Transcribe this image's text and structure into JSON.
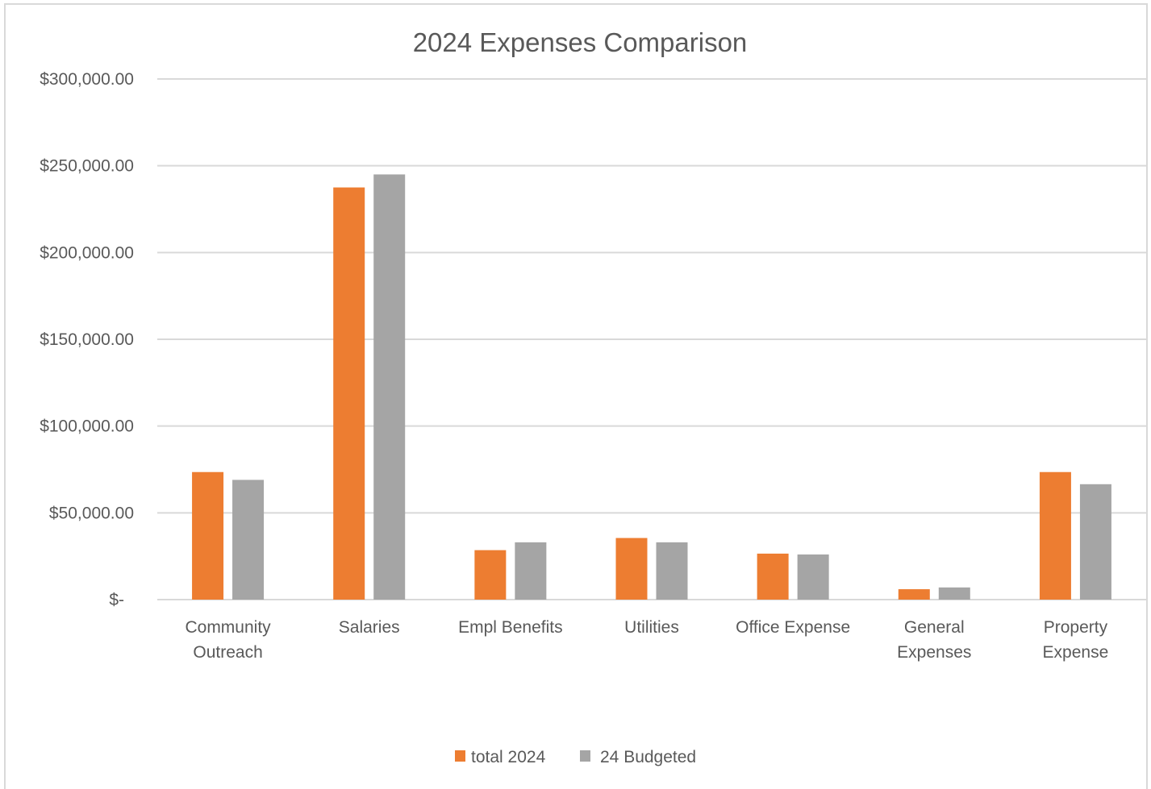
{
  "chart_data": {
    "type": "bar",
    "title": "2024 Expenses Comparison",
    "xlabel": "",
    "ylabel": "",
    "categories": [
      [
        "Community",
        "Outreach"
      ],
      [
        "Salaries"
      ],
      [
        "Empl Benefits"
      ],
      [
        "Utilities"
      ],
      [
        "Office Expense"
      ],
      [
        "General",
        "Expenses"
      ],
      [
        "Property",
        "Expense"
      ]
    ],
    "series": [
      {
        "name": "total 2024",
        "color": "#ED7D31",
        "values": [
          73500,
          237500,
          28500,
          35500,
          26500,
          6000,
          73500
        ]
      },
      {
        "name": "24 Budgeted",
        "color": "#A5A5A5",
        "values": [
          69000,
          245000,
          33000,
          33000,
          26000,
          7000,
          66500
        ]
      }
    ],
    "ylim": [
      0,
      300000
    ],
    "yticks": [
      0,
      50000,
      100000,
      150000,
      200000,
      250000,
      300000
    ],
    "ytick_labels": [
      "$-",
      "$50,000.00",
      "$100,000.00",
      "$150,000.00",
      "$200,000.00",
      "$250,000.00",
      "$300,000.00"
    ],
    "grid": true,
    "legend_position": "bottom",
    "gridline_color": "#D9D9D9"
  }
}
